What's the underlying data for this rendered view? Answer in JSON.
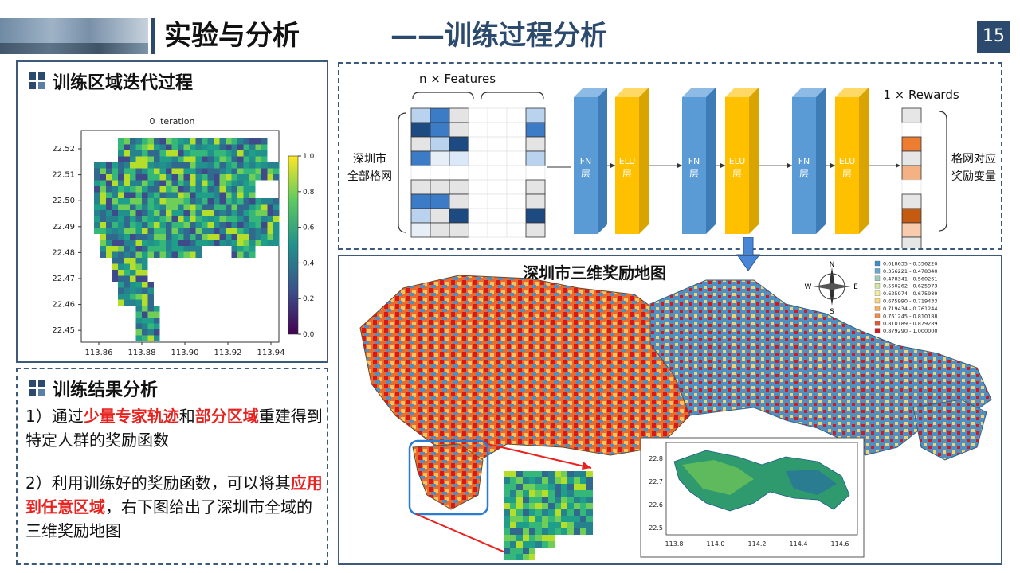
{
  "header": {
    "title": "实验与分析",
    "subtitle": "——训练过程分析",
    "page_number": "15"
  },
  "training_panel": {
    "title": "训练区域迭代过程",
    "plot_title": "0 iteration",
    "y_ticks": [
      "22.52",
      "22.51",
      "22.50",
      "22.49",
      "22.48",
      "22.47",
      "22.46",
      "22.45"
    ],
    "x_ticks": [
      "113.86",
      "113.88",
      "113.90",
      "113.92",
      "113.94"
    ],
    "colorbar_ticks": [
      "1.0",
      "0.8",
      "0.6",
      "0.4",
      "0.2",
      "0.0"
    ]
  },
  "results_panel": {
    "title": "训练结果分析",
    "p1_a": "1）通过",
    "p1_hl1": "少量专家轨迹",
    "p1_b": "和",
    "p1_hl2": "部分区域",
    "p1_c": "重建得到特定人群的奖励函数",
    "p2_a": "2）利用训练好的奖励函数，可以将其",
    "p2_hl": "应用到任意区域",
    "p2_b": "，右下图给出了深圳市全域的三维奖励地图"
  },
  "network": {
    "input_top_label": "n × Features",
    "input_label_1": "深圳市",
    "input_label_2": "全部格网",
    "layers": [
      "FN\n层",
      "ELU\n层",
      "FN\n层",
      "ELU\n层",
      "FN\n层",
      "ELU\n层"
    ],
    "fn_label": "FN",
    "elu_label": "ELU",
    "layer_suffix": "层",
    "output_top_label": "1 × Rewards",
    "output_label_1": "格网对应",
    "output_label_2": "奖励变量"
  },
  "map_panel": {
    "title": "深圳市三维奖励地图",
    "compass": {
      "n": "N",
      "s": "S",
      "e": "E",
      "w": "W"
    },
    "legend": [
      {
        "range": "0.018635 - 0.356220",
        "color": "#3b8fc4"
      },
      {
        "range": "0.356221 - 0.478340",
        "color": "#66a9cf"
      },
      {
        "range": "0.478341 - 0.560261",
        "color": "#9fc9b9"
      },
      {
        "range": "0.560262 - 0.625973",
        "color": "#d2e3a3"
      },
      {
        "range": "0.625974 - 0.675989",
        "color": "#f2ee9e"
      },
      {
        "range": "0.675990 - 0.719433",
        "color": "#f7d67c"
      },
      {
        "range": "0.719434 - 0.761244",
        "color": "#f6b05f"
      },
      {
        "range": "0.761245 - 0.810188",
        "color": "#f08a46"
      },
      {
        "range": "0.810189 - 0.879289",
        "color": "#e35a2e"
      },
      {
        "range": "0.879290 - 1.000000",
        "color": "#d7191c"
      }
    ],
    "inset_y_ticks": [
      "22.8",
      "22.7",
      "22.6",
      "22.5"
    ],
    "inset_x_ticks": [
      "113.8",
      "114.0",
      "114.2",
      "114.4",
      "114.6"
    ]
  }
}
